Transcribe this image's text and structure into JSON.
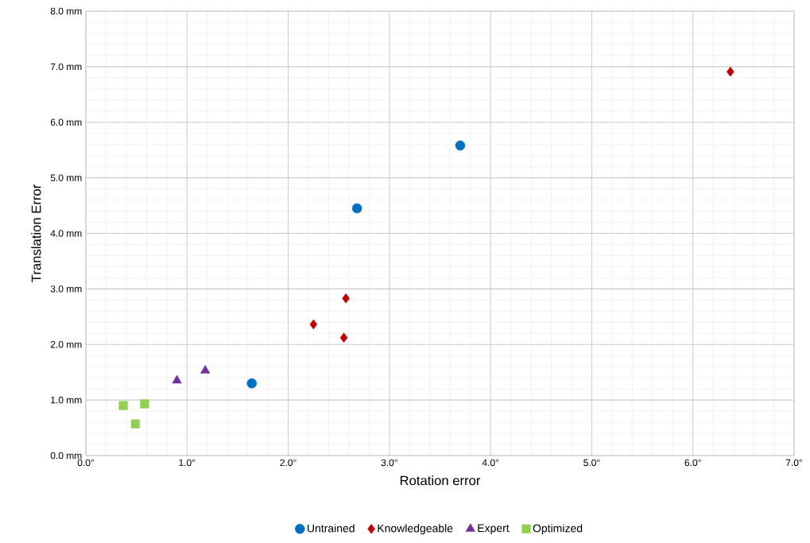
{
  "chart_data": {
    "type": "scatter",
    "xlabel": "Rotation error",
    "ylabel": "Translation Error",
    "series": [
      {
        "name": "Untrained",
        "color": "#0070c0",
        "marker": "circle",
        "x": [
          1.64,
          2.68,
          3.7
        ],
        "values": [
          1.3,
          4.45,
          5.58
        ]
      },
      {
        "name": "Knowledgeable",
        "color": "#c00000",
        "marker": "diamond",
        "x": [
          6.37,
          2.57,
          2.25,
          2.55
        ],
        "values": [
          6.91,
          2.83,
          2.36,
          2.12
        ]
      },
      {
        "name": "Expert",
        "color": "#7030a0",
        "marker": "triangle",
        "x": [
          0.9,
          1.18
        ],
        "values": [
          1.35,
          1.53
        ]
      },
      {
        "name": "Optimized",
        "color": "#92d050",
        "marker": "square",
        "x": [
          0.37,
          0.58,
          0.49
        ],
        "values": [
          0.9,
          0.93,
          0.57
        ]
      }
    ],
    "xlim": [
      0,
      7
    ],
    "ylim": [
      0,
      8
    ],
    "xticks": [
      {
        "value": 0,
        "label": "0.0°"
      },
      {
        "value": 1,
        "label": "1.0°"
      },
      {
        "value": 2,
        "label": "2.0°"
      },
      {
        "value": 3,
        "label": "3.0°"
      },
      {
        "value": 4,
        "label": "4.0°"
      },
      {
        "value": 5,
        "label": "5.0°"
      },
      {
        "value": 6,
        "label": "6.0°"
      },
      {
        "value": 7,
        "label": "7.0°"
      }
    ],
    "yticks": [
      {
        "value": 0,
        "label": "0.0 mm"
      },
      {
        "value": 1,
        "label": "1.0 mm"
      },
      {
        "value": 2,
        "label": "2.0 mm"
      },
      {
        "value": 3,
        "label": "3.0 mm"
      },
      {
        "value": 4,
        "label": "4.0 mm"
      },
      {
        "value": 5,
        "label": "5.0 mm"
      },
      {
        "value": 6,
        "label": "6.0 mm"
      },
      {
        "value": 7,
        "label": "7.0 mm"
      },
      {
        "value": 8,
        "label": "8.0 mm"
      }
    ],
    "grid": true,
    "legend": "bottom"
  }
}
